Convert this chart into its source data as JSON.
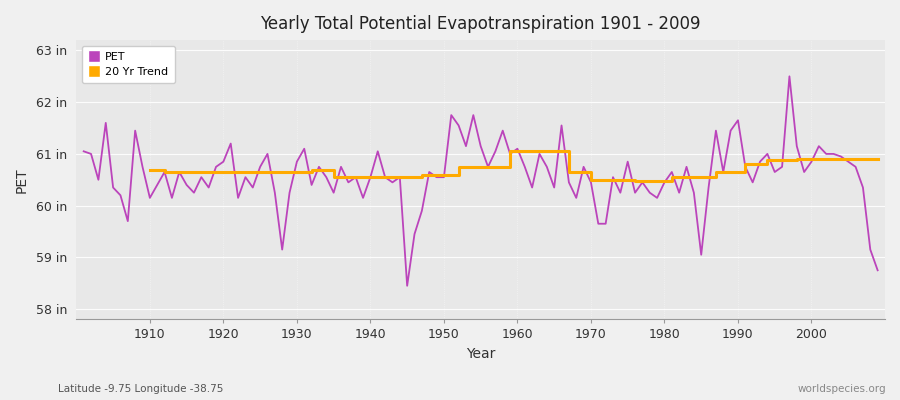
{
  "title": "Yearly Total Potential Evapotranspiration 1901 - 2009",
  "ylabel": "PET",
  "xlabel": "Year",
  "subtitle_left": "Latitude -9.75 Longitude -38.75",
  "subtitle_right": "worldspecies.org",
  "pet_color": "#bb44bb",
  "trend_color": "#ffaa00",
  "fig_bg": "#f0f0f0",
  "plot_bg": "#e8e8e8",
  "grid_color": "#ffffff",
  "ylim": [
    57.8,
    63.2
  ],
  "yticks": [
    58,
    59,
    60,
    61,
    62,
    63
  ],
  "ytick_labels": [
    "58 in",
    "59 in",
    "60 in",
    "61 in",
    "62 in",
    "63 in"
  ],
  "years": [
    1901,
    1902,
    1903,
    1904,
    1905,
    1906,
    1907,
    1908,
    1909,
    1910,
    1911,
    1912,
    1913,
    1914,
    1915,
    1916,
    1917,
    1918,
    1919,
    1920,
    1921,
    1922,
    1923,
    1924,
    1925,
    1926,
    1927,
    1928,
    1929,
    1930,
    1931,
    1932,
    1933,
    1934,
    1935,
    1936,
    1937,
    1938,
    1939,
    1940,
    1941,
    1942,
    1943,
    1944,
    1945,
    1946,
    1947,
    1948,
    1949,
    1950,
    1951,
    1952,
    1953,
    1954,
    1955,
    1956,
    1957,
    1958,
    1959,
    1960,
    1961,
    1962,
    1963,
    1964,
    1965,
    1966,
    1967,
    1968,
    1969,
    1970,
    1971,
    1972,
    1973,
    1974,
    1975,
    1976,
    1977,
    1978,
    1979,
    1980,
    1981,
    1982,
    1983,
    1984,
    1985,
    1986,
    1987,
    1988,
    1989,
    1990,
    1991,
    1992,
    1993,
    1994,
    1995,
    1996,
    1997,
    1998,
    1999,
    2000,
    2001,
    2002,
    2003,
    2004,
    2005,
    2006,
    2007,
    2008,
    2009
  ],
  "pet_values": [
    61.05,
    61.0,
    60.5,
    61.6,
    60.35,
    60.2,
    59.7,
    61.45,
    60.75,
    60.15,
    60.4,
    60.65,
    60.15,
    60.65,
    60.4,
    60.25,
    60.55,
    60.35,
    60.75,
    60.85,
    61.2,
    60.15,
    60.55,
    60.35,
    60.75,
    61.0,
    60.25,
    59.15,
    60.25,
    60.85,
    61.1,
    60.4,
    60.75,
    60.55,
    60.25,
    60.75,
    60.45,
    60.55,
    60.15,
    60.55,
    61.05,
    60.55,
    60.45,
    60.55,
    58.45,
    59.45,
    59.9,
    60.65,
    60.55,
    60.55,
    61.75,
    61.55,
    61.15,
    61.75,
    61.15,
    60.75,
    61.05,
    61.45,
    61.0,
    61.1,
    60.75,
    60.35,
    61.0,
    60.75,
    60.35,
    61.55,
    60.45,
    60.15,
    60.75,
    60.45,
    59.65,
    59.65,
    60.55,
    60.25,
    60.85,
    60.25,
    60.45,
    60.25,
    60.15,
    60.45,
    60.65,
    60.25,
    60.75,
    60.25,
    59.05,
    60.35,
    61.45,
    60.65,
    61.45,
    61.65,
    60.75,
    60.45,
    60.85,
    61.0,
    60.65,
    60.75,
    62.5,
    61.15,
    60.65,
    60.85,
    61.15,
    61.0,
    61.0,
    60.95,
    60.85,
    60.75,
    60.35,
    59.15,
    58.75
  ],
  "trend_values": [
    null,
    null,
    null,
    null,
    null,
    null,
    null,
    null,
    null,
    60.68,
    60.68,
    60.65,
    60.65,
    60.65,
    60.65,
    60.65,
    60.65,
    60.65,
    60.65,
    60.65,
    60.65,
    60.65,
    60.65,
    60.65,
    60.65,
    60.65,
    60.65,
    60.65,
    60.65,
    60.65,
    60.65,
    60.68,
    60.68,
    60.68,
    60.55,
    60.55,
    60.55,
    60.55,
    60.55,
    60.55,
    60.55,
    60.55,
    60.55,
    60.55,
    60.55,
    60.55,
    60.6,
    60.6,
    60.6,
    60.6,
    60.6,
    60.75,
    60.75,
    60.75,
    60.75,
    60.75,
    60.75,
    60.75,
    61.05,
    61.05,
    61.05,
    61.05,
    61.05,
    61.05,
    61.05,
    61.05,
    60.65,
    60.65,
    60.65,
    60.5,
    60.5,
    60.5,
    60.5,
    60.5,
    60.5,
    60.48,
    60.48,
    60.48,
    60.48,
    60.48,
    60.55,
    60.55,
    60.55,
    60.55,
    60.55,
    60.55,
    60.65,
    60.65,
    60.65,
    60.65,
    60.8,
    60.8,
    60.8,
    60.88,
    60.88,
    60.88,
    60.88,
    60.9,
    60.9,
    60.9,
    60.9,
    60.9,
    60.9,
    60.9,
    60.9,
    60.9,
    60.9,
    60.9,
    60.9
  ]
}
